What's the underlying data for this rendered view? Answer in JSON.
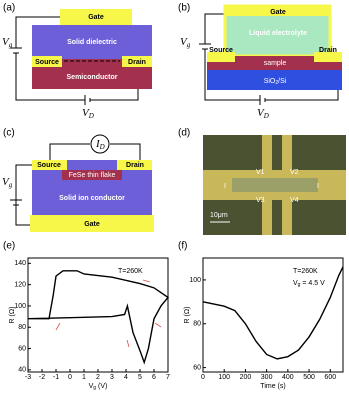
{
  "panels": {
    "a": {
      "label": "(a)",
      "gate": "Gate",
      "dielectric": "Solid dielectric",
      "source": "Source",
      "drain": "Drain",
      "channel": "Semiconductor",
      "vg": [
        "V",
        "g"
      ],
      "vd": [
        "V",
        "D"
      ]
    },
    "b": {
      "label": "(b)",
      "gate": "Gate",
      "electrolyte": "Liquid electrolyte",
      "source": "Source",
      "drain": "Drain",
      "sample": "sample",
      "substrate": [
        "SiO",
        "2",
        "/Si"
      ],
      "vg": [
        "V",
        "g"
      ],
      "vd": [
        "V",
        "D"
      ]
    },
    "c": {
      "label": "(c)",
      "id": [
        "I",
        "D"
      ],
      "source": "Source",
      "drain": "Drain",
      "flake": "FeSe thin flake",
      "conductor": "Solid ion conductor",
      "gate": "Gate",
      "vg": [
        "V",
        "g"
      ]
    },
    "d": {
      "label": "(d)",
      "probes": [
        "V1",
        "V2",
        "V3",
        "V4",
        "I",
        "I"
      ],
      "scale": "10μm"
    }
  },
  "chart_data": [
    {
      "type": "line",
      "label": "(e)",
      "annotation": "T=260K",
      "ylabel": "R (Ω)",
      "xlabel": [
        "V",
        "g",
        " (V)"
      ],
      "x": [
        -3,
        -1.5,
        -1.2,
        -1,
        -0.5,
        0.5,
        1,
        3,
        5,
        6,
        7,
        6.5,
        6,
        5.6,
        5.3,
        5,
        4.5,
        4.1,
        3.9,
        3,
        0,
        -3
      ],
      "series": [
        {
          "color": "#000000",
          "values": [
            88,
            88,
            110,
            128,
            133,
            133,
            130,
            127,
            121,
            117,
            108,
            100,
            88,
            60,
            47,
            58,
            75,
            100,
            92,
            90,
            89,
            88
          ]
        }
      ],
      "xlim": [
        -3,
        7
      ],
      "ylim": [
        38,
        145
      ],
      "xticks": [
        -3,
        -2,
        -1,
        0,
        1,
        2,
        3,
        4,
        5,
        6,
        7
      ],
      "yticks": [
        40,
        60,
        80,
        100,
        120,
        140
      ]
    },
    {
      "type": "line",
      "label": "(f)",
      "annotation": "T=260K",
      "annotation2": [
        "V",
        "g",
        " = 4.5 V"
      ],
      "ylabel": "R (Ω)",
      "xlabel": "Time (s)",
      "x": [
        0,
        100,
        150,
        200,
        250,
        300,
        350,
        400,
        450,
        500,
        550,
        600,
        640,
        660
      ],
      "series": [
        {
          "color": "#000000",
          "values": [
            90,
            88,
            86,
            80,
            72,
            66,
            64,
            65,
            68,
            74,
            82,
            92,
            102,
            106
          ]
        }
      ],
      "xlim": [
        0,
        660
      ],
      "ylim": [
        58,
        110
      ],
      "xticks": [
        0,
        100,
        200,
        300,
        400,
        500,
        600
      ],
      "yticks": [
        60,
        80,
        100
      ]
    }
  ]
}
